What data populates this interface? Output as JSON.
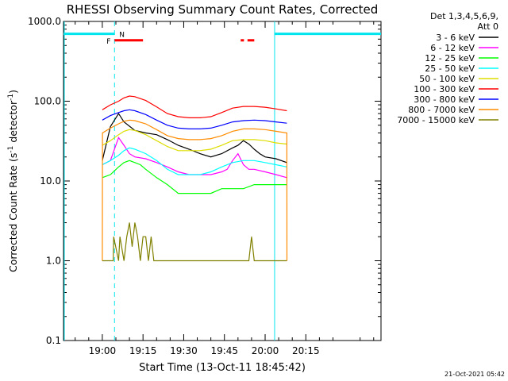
{
  "chart_data": {
    "type": "line",
    "title": "RHESSI Observing Summary Count Rates, Corrected",
    "xlabel": "Start Time (13-Oct-11 18:45:42)",
    "ylabel_main": "Corrected Count Rate (s",
    "ylabel_sup1": "-1",
    "ylabel_mid": " detector",
    "ylabel_sup2": "-1",
    "ylabel_end": ")",
    "yscale": "log",
    "ylim": [
      0.1,
      1000.0
    ],
    "xlim_minutes": [
      -14.3,
      102.7
    ],
    "ytick_labels": [
      {
        "v": 0.1,
        "label": "0.1"
      },
      {
        "v": 1.0,
        "label": "1.0"
      },
      {
        "v": 10.0,
        "label": "10.0"
      },
      {
        "v": 100.0,
        "label": "100.0"
      },
      {
        "v": 1000.0,
        "label": "1000.0"
      }
    ],
    "xtick_labels": [
      {
        "m": 0,
        "label": "19:00"
      },
      {
        "m": 15,
        "label": "19:15"
      },
      {
        "m": 30,
        "label": "19:30"
      },
      {
        "m": 45,
        "label": "19:45"
      },
      {
        "m": 60,
        "label": "20:00"
      },
      {
        "m": 75,
        "label": "20:15"
      }
    ],
    "legend_header": [
      "Det 1,3,4,5,6,9,",
      "Att 0"
    ],
    "legend_position": "right",
    "series": [
      {
        "name": "3 - 6 keV",
        "color": "#000000",
        "points": [
          [
            0,
            18
          ],
          [
            3,
            48
          ],
          [
            6,
            70
          ],
          [
            8,
            55
          ],
          [
            12,
            43
          ],
          [
            16,
            40
          ],
          [
            20,
            38
          ],
          [
            24,
            33
          ],
          [
            28,
            28
          ],
          [
            32,
            25
          ],
          [
            36,
            22
          ],
          [
            40,
            20
          ],
          [
            44,
            22
          ],
          [
            48,
            26
          ],
          [
            50,
            28
          ],
          [
            52,
            32
          ],
          [
            54,
            29
          ],
          [
            56,
            25
          ],
          [
            58,
            22
          ],
          [
            60,
            20
          ],
          [
            64,
            19
          ],
          [
            68,
            17
          ]
        ]
      },
      {
        "name": "6 - 12 keV",
        "color": "#ff00ff",
        "points": [
          [
            0,
            16
          ],
          [
            3,
            18
          ],
          [
            6,
            35
          ],
          [
            8,
            28
          ],
          [
            10,
            22
          ],
          [
            12,
            20
          ],
          [
            16,
            19
          ],
          [
            20,
            17
          ],
          [
            24,
            15
          ],
          [
            28,
            13
          ],
          [
            32,
            12
          ],
          [
            36,
            12
          ],
          [
            40,
            12
          ],
          [
            44,
            13
          ],
          [
            46,
            14
          ],
          [
            48,
            18
          ],
          [
            50,
            22
          ],
          [
            52,
            16
          ],
          [
            54,
            14
          ],
          [
            56,
            14
          ],
          [
            60,
            13
          ],
          [
            64,
            12
          ],
          [
            68,
            11
          ]
        ]
      },
      {
        "name": "12 - 25 keV",
        "color": "#00ff00",
        "points": [
          [
            0,
            11
          ],
          [
            3,
            12
          ],
          [
            6,
            15
          ],
          [
            8,
            17
          ],
          [
            10,
            18
          ],
          [
            12,
            17
          ],
          [
            14,
            16
          ],
          [
            16,
            14
          ],
          [
            20,
            11
          ],
          [
            24,
            9
          ],
          [
            28,
            7
          ],
          [
            32,
            7
          ],
          [
            36,
            7
          ],
          [
            40,
            7
          ],
          [
            44,
            8
          ],
          [
            48,
            8
          ],
          [
            52,
            8
          ],
          [
            56,
            9
          ],
          [
            60,
            9
          ],
          [
            64,
            9
          ],
          [
            68,
            9
          ]
        ]
      },
      {
        "name": "25 - 50 keV",
        "color": "#00ffff",
        "points": [
          [
            0,
            16
          ],
          [
            3,
            18
          ],
          [
            6,
            21
          ],
          [
            8,
            24
          ],
          [
            10,
            26
          ],
          [
            12,
            25
          ],
          [
            16,
            22
          ],
          [
            20,
            18
          ],
          [
            24,
            14
          ],
          [
            28,
            12
          ],
          [
            32,
            12
          ],
          [
            36,
            12
          ],
          [
            40,
            13
          ],
          [
            44,
            15
          ],
          [
            48,
            17
          ],
          [
            52,
            18
          ],
          [
            56,
            18
          ],
          [
            60,
            17
          ],
          [
            64,
            16
          ],
          [
            68,
            15
          ]
        ]
      },
      {
        "name": "50 - 100 keV",
        "color": "#dddd00",
        "points": [
          [
            0,
            28
          ],
          [
            3,
            32
          ],
          [
            6,
            38
          ],
          [
            8,
            42
          ],
          [
            10,
            44
          ],
          [
            12,
            43
          ],
          [
            16,
            38
          ],
          [
            20,
            32
          ],
          [
            24,
            27
          ],
          [
            28,
            24
          ],
          [
            32,
            24
          ],
          [
            36,
            24
          ],
          [
            40,
            25
          ],
          [
            44,
            28
          ],
          [
            48,
            32
          ],
          [
            52,
            33
          ],
          [
            56,
            33
          ],
          [
            60,
            32
          ],
          [
            64,
            30
          ],
          [
            68,
            29
          ]
        ]
      },
      {
        "name": "100 - 300 keV",
        "color": "#ff0000",
        "points": [
          [
            0,
            78
          ],
          [
            3,
            90
          ],
          [
            6,
            100
          ],
          [
            8,
            110
          ],
          [
            10,
            116
          ],
          [
            12,
            114
          ],
          [
            16,
            102
          ],
          [
            20,
            85
          ],
          [
            24,
            70
          ],
          [
            28,
            64
          ],
          [
            32,
            62
          ],
          [
            36,
            62
          ],
          [
            40,
            64
          ],
          [
            44,
            72
          ],
          [
            48,
            82
          ],
          [
            52,
            86
          ],
          [
            56,
            86
          ],
          [
            60,
            84
          ],
          [
            64,
            80
          ],
          [
            68,
            76
          ]
        ]
      },
      {
        "name": "300 - 800 keV",
        "color": "#0000ff",
        "points": [
          [
            0,
            58
          ],
          [
            3,
            66
          ],
          [
            6,
            72
          ],
          [
            8,
            76
          ],
          [
            10,
            78
          ],
          [
            12,
            76
          ],
          [
            16,
            68
          ],
          [
            20,
            58
          ],
          [
            24,
            50
          ],
          [
            28,
            46
          ],
          [
            32,
            45
          ],
          [
            36,
            45
          ],
          [
            40,
            46
          ],
          [
            44,
            50
          ],
          [
            48,
            55
          ],
          [
            52,
            57
          ],
          [
            56,
            58
          ],
          [
            60,
            57
          ],
          [
            64,
            55
          ],
          [
            68,
            53
          ]
        ]
      },
      {
        "name": "800 - 7000 keV",
        "color": "#ff8c00",
        "points": [
          [
            0,
            1.0
          ],
          [
            0.05,
            40
          ],
          [
            3,
            46
          ],
          [
            6,
            52
          ],
          [
            8,
            56
          ],
          [
            10,
            58
          ],
          [
            12,
            57
          ],
          [
            16,
            52
          ],
          [
            20,
            44
          ],
          [
            24,
            37
          ],
          [
            28,
            34
          ],
          [
            32,
            33
          ],
          [
            36,
            33
          ],
          [
            40,
            34
          ],
          [
            44,
            37
          ],
          [
            48,
            42
          ],
          [
            52,
            45
          ],
          [
            56,
            45
          ],
          [
            60,
            44
          ],
          [
            64,
            42
          ],
          [
            68,
            40
          ],
          [
            68.05,
            1.0
          ]
        ]
      },
      {
        "name": "7000 - 15000 keV",
        "color": "#808000",
        "points": [
          [
            0,
            1.0
          ],
          [
            4,
            1.0
          ],
          [
            4.2,
            2.0
          ],
          [
            6,
            1.0
          ],
          [
            6.5,
            2.0
          ],
          [
            8,
            1.0
          ],
          [
            9,
            2.0
          ],
          [
            10,
            3.0
          ],
          [
            11,
            1.5
          ],
          [
            12,
            3.0
          ],
          [
            13,
            2.0
          ],
          [
            14,
            1.0
          ],
          [
            15,
            2.0
          ],
          [
            16,
            2.0
          ],
          [
            17,
            1.0
          ],
          [
            18,
            2.0
          ],
          [
            19,
            1.0
          ],
          [
            30,
            1.0
          ],
          [
            35,
            1.0
          ],
          [
            45,
            1.0
          ],
          [
            50,
            1.0
          ],
          [
            54,
            1.0
          ],
          [
            55,
            2.0
          ],
          [
            56,
            1.0
          ],
          [
            60,
            1.0
          ],
          [
            68,
            1.0
          ]
        ]
      }
    ]
  },
  "markers": {
    "saa_label": "N",
    "saa_intervals": [
      [
        -14.3,
        4.5
      ],
      [
        63.5,
        102.7
      ]
    ],
    "saa_level": 700,
    "flare_label": "F",
    "flare_intervals": [
      [
        4.5,
        15.0
      ],
      [
        51.0,
        52.2
      ],
      [
        53.5,
        56.0
      ]
    ],
    "flare_level": 580,
    "colors": {
      "saa": "#00e5ee",
      "flare": "#ff0000"
    }
  },
  "footer_date": "21-Oct-2021 05:42"
}
